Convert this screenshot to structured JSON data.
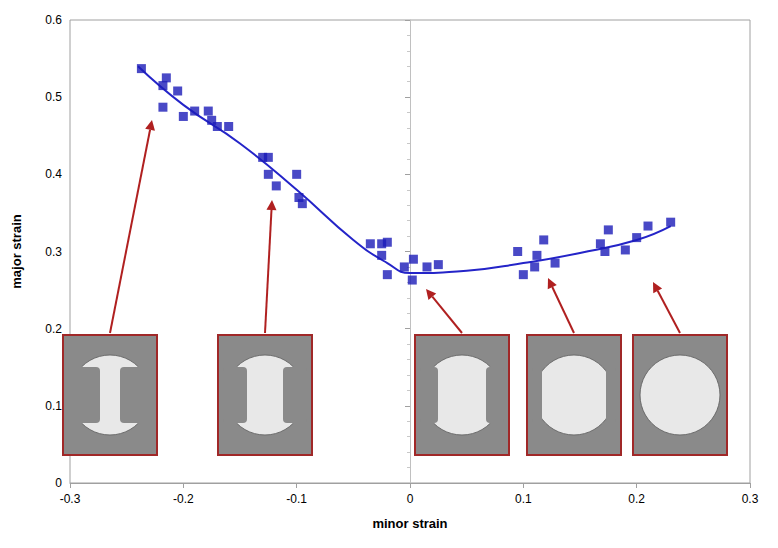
{
  "chart_data": {
    "type": "scatter",
    "x_label": "minor strain",
    "y_label": "major strain",
    "xlim": [
      -0.3,
      0.3
    ],
    "xticks": [
      -0.3,
      -0.2,
      -0.1,
      0,
      0.1,
      0.2,
      0.3
    ],
    "ylim": [
      0,
      0.6
    ],
    "yticks": [
      0,
      0.1,
      0.2,
      0.3,
      0.4,
      0.5,
      0.6
    ],
    "grid": false,
    "series": [
      {
        "type": "scatter",
        "color": "#1c1cb8",
        "marker": "square",
        "x": [
          -0.237,
          -0.218,
          -0.215,
          -0.218,
          -0.205,
          -0.2,
          -0.19,
          -0.178,
          -0.175,
          -0.17,
          -0.16,
          -0.13,
          -0.125,
          -0.125,
          -0.118,
          -0.1,
          -0.098,
          -0.095,
          -0.035,
          -0.025,
          -0.02,
          -0.02,
          -0.025,
          -0.005,
          0.003,
          0.002,
          0.015,
          0.025,
          0.095,
          0.1,
          0.11,
          0.112,
          0.118,
          0.128,
          0.168,
          0.172,
          0.175,
          0.19,
          0.2,
          0.21,
          0.23
        ],
        "values": [
          0.537,
          0.515,
          0.525,
          0.487,
          0.508,
          0.475,
          0.482,
          0.482,
          0.47,
          0.462,
          0.462,
          0.422,
          0.422,
          0.4,
          0.385,
          0.4,
          0.37,
          0.362,
          0.31,
          0.31,
          0.312,
          0.27,
          0.295,
          0.28,
          0.29,
          0.263,
          0.28,
          0.283,
          0.3,
          0.27,
          0.28,
          0.295,
          0.315,
          0.285,
          0.31,
          0.3,
          0.328,
          0.302,
          0.318,
          0.333,
          0.338
        ]
      },
      {
        "type": "line",
        "color": "#2424c8",
        "line_style": "solid",
        "x": [
          -0.24,
          -0.2,
          -0.15,
          -0.1,
          -0.05,
          -0.02,
          0,
          0.05,
          0.1,
          0.15,
          0.2,
          0.23
        ],
        "values": [
          0.54,
          0.49,
          0.44,
          0.38,
          0.315,
          0.285,
          0.272,
          0.275,
          0.285,
          0.298,
          0.315,
          0.333
        ]
      }
    ]
  }
}
